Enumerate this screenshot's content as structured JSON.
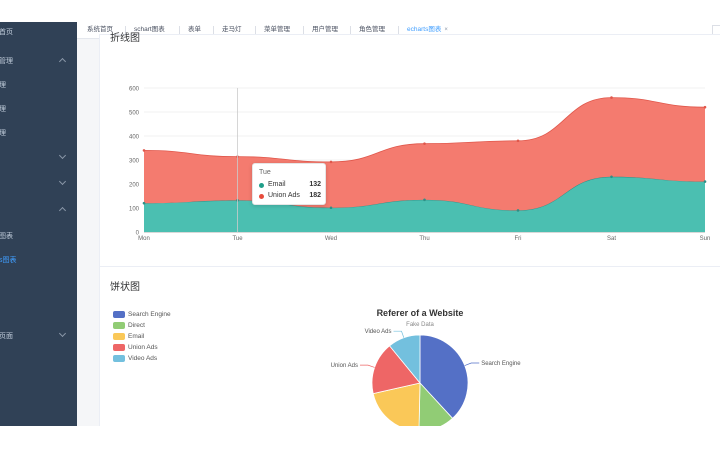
{
  "sidebar": {
    "items": [
      {
        "label": "首页",
        "top": 3,
        "expand": ""
      },
      {
        "label": "管理",
        "top": 32,
        "expand": "up"
      },
      {
        "label": "理",
        "top": 56,
        "expand": ""
      },
      {
        "label": "理",
        "top": 80,
        "expand": ""
      },
      {
        "label": "理",
        "top": 104,
        "expand": ""
      },
      {
        "label": "",
        "top": 129,
        "expand": "down"
      },
      {
        "label": "",
        "top": 155,
        "expand": "down"
      },
      {
        "label": "",
        "top": 181,
        "expand": "up"
      },
      {
        "label": "图表",
        "top": 207,
        "expand": ""
      },
      {
        "label": "s图表",
        "top": 231,
        "expand": ""
      },
      {
        "label": "页面",
        "top": 307,
        "expand": "down"
      }
    ],
    "active_index": 9
  },
  "tabs": {
    "items": [
      "系统首页",
      "schart图表",
      "表单",
      "走马灯",
      "菜单管理",
      "用户管理",
      "角色管理",
      "echarts图表"
    ],
    "active_index": 7,
    "close_glyph": "×"
  },
  "line_card": {
    "title": "折线图"
  },
  "pie_card": {
    "title": "饼状图"
  },
  "tooltip": {
    "title": "Tue",
    "rows": [
      {
        "name": "Email",
        "value": "132",
        "color": "#1f9e89"
      },
      {
        "name": "Union Ads",
        "value": "182",
        "color": "#e74c3c"
      }
    ]
  },
  "chart_data": [
    {
      "type": "area",
      "stacked": true,
      "smooth": true,
      "categories": [
        "Mon",
        "Tue",
        "Wed",
        "Thu",
        "Fri",
        "Sat",
        "Sun"
      ],
      "ylim": [
        0,
        600
      ],
      "yticks": [
        0,
        100,
        200,
        300,
        400,
        500,
        600
      ],
      "grid": true,
      "series": [
        {
          "name": "Email",
          "values": [
            120,
            132,
            101,
            134,
            90,
            230,
            210
          ],
          "color": "#4bbfb1"
        },
        {
          "name": "Union Ads",
          "values": [
            220,
            182,
            191,
            234,
            290,
            330,
            310
          ],
          "color": "#f47b6f"
        }
      ]
    },
    {
      "type": "pie",
      "title": "Referer of a Website",
      "subtitle": "Fake Data",
      "legend_position": "top-left",
      "slices": [
        {
          "name": "Search Engine",
          "value": 1048,
          "color": "#5470c6"
        },
        {
          "name": "Direct",
          "value": 335,
          "color": "#91cc75"
        },
        {
          "name": "Email",
          "value": 580,
          "color": "#fac858"
        },
        {
          "name": "Union Ads",
          "value": 484,
          "color": "#ee6666"
        },
        {
          "name": "Video Ads",
          "value": 300,
          "color": "#73c0de"
        }
      ]
    }
  ]
}
